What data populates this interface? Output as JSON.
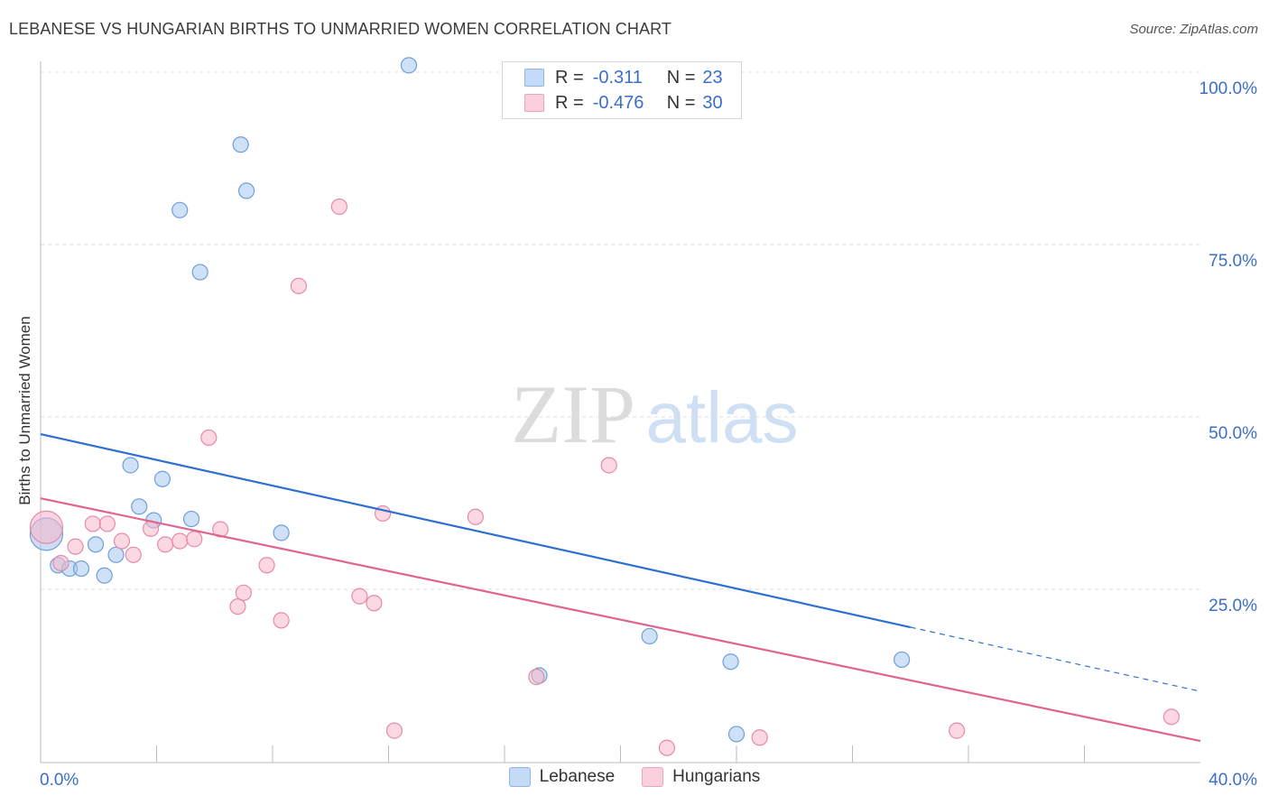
{
  "chart_data": {
    "type": "scatter",
    "title": "LEBANESE VS HUNGARIAN BIRTHS TO UNMARRIED WOMEN CORRELATION CHART",
    "source": "Source: ZipAtlas.com",
    "ylabel": "Births to Unmarried Women",
    "xlabel": "",
    "xlim": [
      0,
      40
    ],
    "ylim": [
      0,
      105
    ],
    "x_tick_labels": [
      "0.0%",
      "40.0%"
    ],
    "y_tick_labels": [
      "100.0%",
      "75.0%",
      "50.0%",
      "25.0%"
    ],
    "y_ticks": [
      100,
      75,
      50,
      25
    ],
    "watermark": {
      "zip": "ZIP",
      "atlas": "atlas"
    },
    "legend": [
      {
        "r_label": "R =",
        "r_value": "-0.311",
        "n_label": "N =",
        "n_value": "23",
        "color": "#a8c8f0"
      },
      {
        "r_label": "R =",
        "r_value": "-0.476",
        "n_label": "N =",
        "n_value": "30",
        "color": "#f7b8cb"
      }
    ],
    "series": [
      {
        "name": "Lebanese",
        "color": "#a8c8f0",
        "stroke": "#6f9fd8",
        "line_color": "#2e6fd1",
        "trend": {
          "x0": 0,
          "y0": 47.5,
          "x1": 30,
          "y1": 19.5,
          "x_dash_end": 40,
          "y_dash_end": 10.2
        },
        "points": [
          {
            "x": 0.2,
            "y": 33.0,
            "big": true
          },
          {
            "x": 0.6,
            "y": 28.5
          },
          {
            "x": 1.0,
            "y": 28.0
          },
          {
            "x": 1.4,
            "y": 28.0
          },
          {
            "x": 1.9,
            "y": 31.5
          },
          {
            "x": 2.2,
            "y": 27.0
          },
          {
            "x": 2.6,
            "y": 30.0
          },
          {
            "x": 3.1,
            "y": 43.0
          },
          {
            "x": 3.4,
            "y": 37.0
          },
          {
            "x": 3.9,
            "y": 35.0
          },
          {
            "x": 4.2,
            "y": 41.0
          },
          {
            "x": 4.8,
            "y": 80.0
          },
          {
            "x": 5.2,
            "y": 35.2
          },
          {
            "x": 5.5,
            "y": 71.0
          },
          {
            "x": 6.9,
            "y": 89.5
          },
          {
            "x": 7.1,
            "y": 82.8
          },
          {
            "x": 8.3,
            "y": 33.2
          },
          {
            "x": 12.7,
            "y": 101.0
          },
          {
            "x": 17.2,
            "y": 12.5
          },
          {
            "x": 21.0,
            "y": 18.2
          },
          {
            "x": 23.8,
            "y": 14.5
          },
          {
            "x": 24.0,
            "y": 4.0
          },
          {
            "x": 29.7,
            "y": 14.8
          }
        ]
      },
      {
        "name": "Hungarians",
        "color": "#f7b8cb",
        "stroke": "#e68aa8",
        "line_color": "#e0648d",
        "trend": {
          "x0": 0,
          "y0": 38.2,
          "x1": 40,
          "y1": 3.0
        },
        "points": [
          {
            "x": 0.2,
            "y": 34.0,
            "big": true
          },
          {
            "x": 0.7,
            "y": 28.8
          },
          {
            "x": 1.2,
            "y": 31.2
          },
          {
            "x": 1.8,
            "y": 34.5
          },
          {
            "x": 2.3,
            "y": 34.5
          },
          {
            "x": 2.8,
            "y": 32.0
          },
          {
            "x": 3.2,
            "y": 30.0
          },
          {
            "x": 3.8,
            "y": 33.8
          },
          {
            "x": 4.3,
            "y": 31.5
          },
          {
            "x": 4.8,
            "y": 32.0
          },
          {
            "x": 5.3,
            "y": 32.3
          },
          {
            "x": 5.8,
            "y": 47.0
          },
          {
            "x": 6.2,
            "y": 33.7
          },
          {
            "x": 6.8,
            "y": 22.5
          },
          {
            "x": 7.0,
            "y": 24.5
          },
          {
            "x": 7.8,
            "y": 28.5
          },
          {
            "x": 8.3,
            "y": 20.5
          },
          {
            "x": 8.9,
            "y": 69.0
          },
          {
            "x": 10.3,
            "y": 80.5
          },
          {
            "x": 11.0,
            "y": 24.0
          },
          {
            "x": 11.5,
            "y": 23.0
          },
          {
            "x": 11.8,
            "y": 36.0
          },
          {
            "x": 12.2,
            "y": 4.5
          },
          {
            "x": 15.0,
            "y": 35.5
          },
          {
            "x": 17.1,
            "y": 12.3
          },
          {
            "x": 19.6,
            "y": 43.0
          },
          {
            "x": 21.6,
            "y": 2.0
          },
          {
            "x": 24.8,
            "y": 3.5
          },
          {
            "x": 31.6,
            "y": 4.5
          },
          {
            "x": 39.0,
            "y": 6.5
          }
        ]
      }
    ]
  }
}
